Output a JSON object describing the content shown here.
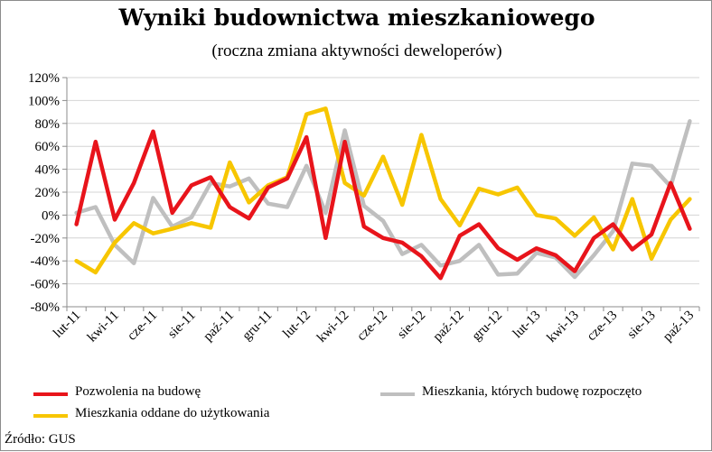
{
  "title": "Wyniki budownictwa mieszkaniowego",
  "subtitle": "(roczna zmiana aktywności deweloperów)",
  "source": "Źródło: GUS",
  "colors": {
    "red": "#e8141b",
    "gray": "#bfbfbf",
    "yellow": "#f7c600",
    "grid": "#d4d4d4"
  },
  "chart_data": {
    "type": "line",
    "title": "Wyniki budownictwa mieszkaniowego",
    "subtitle": "(roczna zmiana aktywności deweloperów)",
    "y_ticks": [
      "120%",
      "100%",
      "80%",
      "60%",
      "40%",
      "20%",
      "0%",
      "-20%",
      "-40%",
      "-60%",
      "-80%"
    ],
    "ylim": [
      -80,
      120
    ],
    "y_unit": "%",
    "grid": true,
    "legend_position": "bottom",
    "x": [
      "lut-11",
      "mar-11",
      "kwi-11",
      "maj-11",
      "cze-11",
      "lip-11",
      "sie-11",
      "wrz-11",
      "paź-11",
      "lis-11",
      "gru-11",
      "sty-12",
      "lut-12",
      "mar-12",
      "kwi-12",
      "maj-12",
      "cze-12",
      "lip-12",
      "sie-12",
      "wrz-12",
      "paź-12",
      "lis-12",
      "gru-12",
      "sty-13",
      "lut-13",
      "mar-13",
      "kwi-13",
      "maj-13",
      "cze-13",
      "lip-13",
      "sie-13",
      "wrz-13",
      "paź-13"
    ],
    "x_tick_labels": [
      "lut-11",
      "kwi-11",
      "cze-11",
      "sie-11",
      "paź-11",
      "gru-11",
      "lut-12",
      "kwi-12",
      "cze-12",
      "sie-12",
      "paź-12",
      "gru-12",
      "lut-13",
      "kwi-13",
      "cze-13",
      "sie-13",
      "paź-13"
    ],
    "series": [
      {
        "name": "Pozwolenia na budowę",
        "color": "#e8141b",
        "values": [
          -8,
          64,
          -4,
          28,
          73,
          2,
          26,
          33,
          7,
          -3,
          24,
          32,
          68,
          -20,
          64,
          -10,
          -20,
          -24,
          -36,
          -55,
          -18,
          -8,
          -29,
          -39,
          -29,
          -35,
          -49,
          -20,
          -8,
          -30,
          -17,
          28,
          -12
        ]
      },
      {
        "name": "Mieszkania, których budowę rozpoczęto",
        "color": "#bfbfbf",
        "values": [
          2,
          7,
          -26,
          -42,
          15,
          -10,
          -2,
          28,
          25,
          32,
          10,
          7,
          43,
          2,
          74,
          8,
          -5,
          -34,
          -26,
          -44,
          -40,
          -26,
          -52,
          -51,
          -33,
          -37,
          -54,
          -35,
          -14,
          45,
          43,
          25,
          82
        ]
      },
      {
        "name": "Mieszkania oddane do użytkowania",
        "color": "#f7c600",
        "values": [
          -40,
          -50,
          -24,
          -7,
          -16,
          -12,
          -7,
          -11,
          46,
          11,
          26,
          33,
          88,
          93,
          28,
          17,
          51,
          9,
          70,
          14,
          -9,
          23,
          18,
          24,
          0,
          -3,
          -18,
          -2,
          -30,
          14,
          -38,
          -4,
          14
        ]
      }
    ]
  }
}
